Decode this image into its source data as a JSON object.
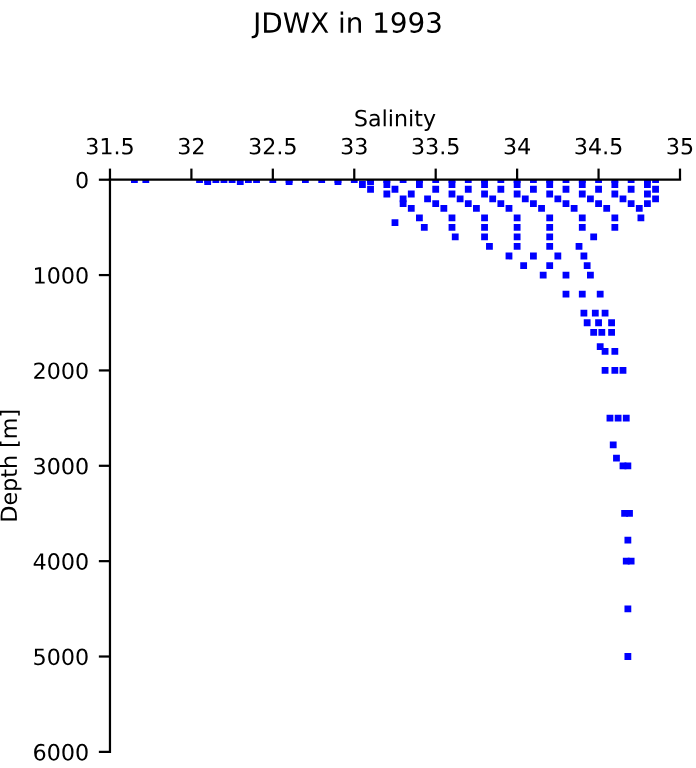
{
  "chart_data": {
    "type": "scatter",
    "title": "JDWX in 1993",
    "xlabel": "Salinity",
    "ylabel": "Depth [m]",
    "x": [
      31.65,
      31.72,
      32.05,
      32.1,
      32.15,
      32.2,
      32.25,
      32.35,
      32.4,
      32.5,
      32.6,
      32.7,
      32.8,
      32.9,
      33.0,
      33.1,
      33.2,
      33.3,
      33.4,
      33.5,
      33.6,
      33.7,
      33.8,
      33.9,
      34.0,
      34.1,
      34.2,
      34.3,
      34.4,
      34.5,
      34.6,
      34.7,
      34.8,
      34.85,
      32.1,
      32.3,
      32.6,
      32.9,
      33.1,
      33.05,
      33.2,
      33.4,
      33.6,
      33.8,
      34.0,
      34.2,
      34.4,
      34.6,
      34.8,
      33.1,
      33.25,
      33.5,
      33.7,
      33.9,
      34.1,
      34.3,
      34.5,
      34.7,
      34.85,
      33.2,
      33.35,
      33.6,
      33.8,
      34.0,
      34.2,
      34.4,
      34.6,
      34.8,
      33.3,
      33.45,
      33.65,
      33.85,
      34.05,
      34.25,
      34.45,
      34.65,
      34.85,
      33.3,
      33.5,
      33.7,
      33.9,
      34.1,
      34.3,
      34.5,
      34.7,
      34.8,
      33.35,
      33.55,
      33.75,
      33.95,
      34.15,
      34.35,
      34.55,
      34.75,
      33.4,
      33.6,
      33.8,
      34.0,
      34.2,
      34.4,
      34.6,
      34.76,
      33.25,
      33.43,
      33.6,
      33.8,
      34.0,
      34.2,
      34.4,
      34.6,
      33.62,
      33.8,
      34.0,
      34.2,
      34.47,
      33.83,
      34.0,
      34.2,
      34.38,
      33.95,
      34.1,
      34.25,
      34.41,
      34.04,
      34.2,
      34.43,
      34.16,
      34.3,
      34.45,
      34.3,
      34.4,
      34.51,
      34.41,
      34.48,
      34.54,
      34.43,
      34.5,
      34.58,
      34.47,
      34.52,
      34.58,
      34.51,
      34.54,
      34.6,
      34.54,
      34.6,
      34.65,
      34.57,
      34.62,
      34.67,
      34.59,
      34.61,
      34.65,
      34.68,
      34.66,
      34.69,
      34.68,
      34.67,
      34.7,
      34.68,
      34.68
    ],
    "values": [
      0,
      0,
      0,
      0,
      0,
      0,
      0,
      0,
      0,
      0,
      0,
      0,
      0,
      0,
      0,
      0,
      0,
      0,
      0,
      0,
      0,
      0,
      0,
      0,
      0,
      0,
      0,
      0,
      0,
      0,
      0,
      0,
      0,
      0,
      20,
      20,
      20,
      20,
      20,
      50,
      50,
      50,
      50,
      50,
      50,
      50,
      50,
      50,
      50,
      100,
      100,
      100,
      100,
      100,
      100,
      100,
      100,
      100,
      100,
      150,
      150,
      150,
      150,
      150,
      150,
      150,
      150,
      150,
      200,
      200,
      200,
      200,
      200,
      200,
      200,
      200,
      200,
      250,
      250,
      250,
      250,
      250,
      250,
      250,
      250,
      250,
      300,
      300,
      300,
      300,
      300,
      300,
      300,
      300,
      400,
      400,
      400,
      400,
      400,
      400,
      400,
      400,
      450,
      500,
      500,
      500,
      500,
      500,
      500,
      500,
      600,
      600,
      600,
      600,
      600,
      700,
      700,
      700,
      700,
      800,
      800,
      800,
      800,
      900,
      900,
      900,
      1000,
      1000,
      1000,
      1200,
      1200,
      1200,
      1400,
      1400,
      1400,
      1500,
      1500,
      1500,
      1600,
      1600,
      1600,
      1750,
      1800,
      1800,
      2000,
      2000,
      2000,
      2500,
      2500,
      2500,
      2780,
      2920,
      3000,
      3000,
      3500,
      3500,
      3780,
      4000,
      4000,
      4500,
      5000
    ],
    "color": "#0000ff",
    "marker": "square",
    "xlim": [
      31.5,
      35
    ],
    "xticks": [
      31.5,
      32,
      32.5,
      33,
      33.5,
      34,
      34.5,
      35
    ],
    "ylim": [
      6000,
      0
    ],
    "yticks": [
      0,
      1000,
      2000,
      3000,
      4000,
      5000,
      6000
    ],
    "grid": false
  }
}
